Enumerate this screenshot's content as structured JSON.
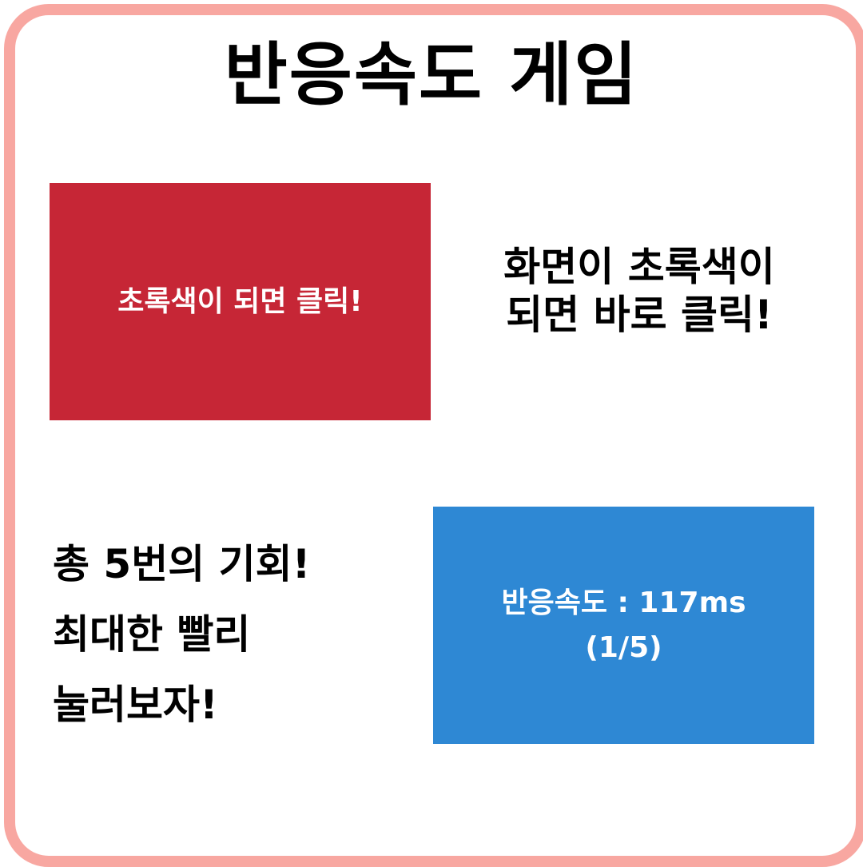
{
  "title": "반응속도 게임",
  "red_panel": {
    "text": "초록색이 되면 클릭!",
    "color": "#c62636"
  },
  "right_description": {
    "lines": [
      "화면이 초록색이",
      "되면 바로 클릭!"
    ]
  },
  "left_description": {
    "lines": [
      "총 5번의 기회!",
      "최대한 빨리",
      "눌러보자!"
    ]
  },
  "blue_panel": {
    "result_line": "반응속도 : 117ms",
    "attempt_line": "(1/5)",
    "color": "#2e88d4"
  },
  "frame_color": "#f8a7a1"
}
